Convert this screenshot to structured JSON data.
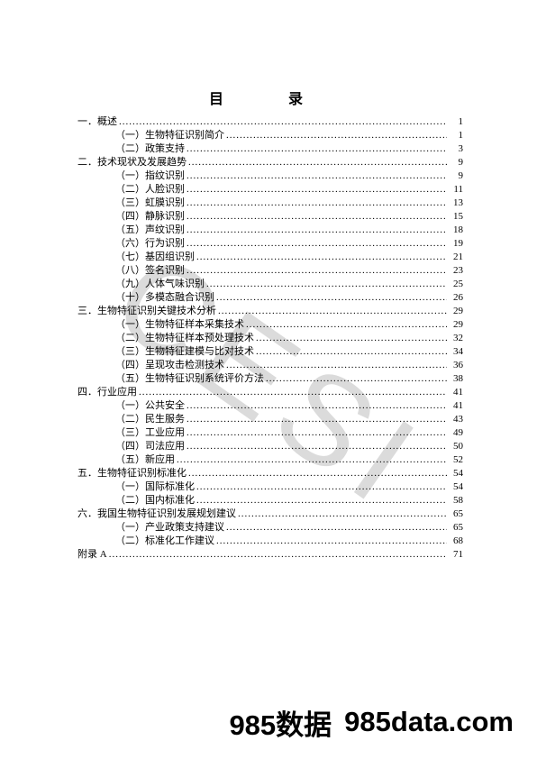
{
  "title": "目　录",
  "watermark": "CESI",
  "footer_left": "985数据",
  "footer_right": "985data.com",
  "toc": [
    {
      "level": 0,
      "num": "一．",
      "text": "概述",
      "page": "1"
    },
    {
      "level": 1,
      "num": "（一）",
      "text": "生物特征识别简介",
      "page": "1"
    },
    {
      "level": 1,
      "num": "（二）",
      "text": "政策支持",
      "page": "3"
    },
    {
      "level": 0,
      "num": "二．",
      "text": "技术现状及发展趋势",
      "page": "9"
    },
    {
      "level": 1,
      "num": "（一）",
      "text": "指纹识别",
      "page": "9"
    },
    {
      "level": 1,
      "num": "（二）",
      "text": "人脸识别",
      "page": "11"
    },
    {
      "level": 1,
      "num": "（三）",
      "text": "虹膜识别",
      "page": "13"
    },
    {
      "level": 1,
      "num": "（四）",
      "text": "静脉识别",
      "page": "15"
    },
    {
      "level": 1,
      "num": "（五）",
      "text": "声纹识别",
      "page": "18"
    },
    {
      "level": 1,
      "num": "（六）",
      "text": "行为识别",
      "page": "19"
    },
    {
      "level": 1,
      "num": "（七）",
      "text": "基因组识别",
      "page": "21"
    },
    {
      "level": 1,
      "num": "（八）",
      "text": "签名识别",
      "page": "23"
    },
    {
      "level": 1,
      "num": "（九）",
      "text": "人体气味识别",
      "page": "25"
    },
    {
      "level": 1,
      "num": "（十）",
      "text": "多模态融合识别",
      "page": "26"
    },
    {
      "level": 0,
      "num": "三．",
      "text": "生物特征识别关键技术分析",
      "page": "29"
    },
    {
      "level": 1,
      "num": "（一）",
      "text": "生物特征样本采集技术",
      "page": "29"
    },
    {
      "level": 1,
      "num": "（二）",
      "text": "生物特征样本预处理技术",
      "page": "32"
    },
    {
      "level": 1,
      "num": "（三）",
      "text": "生物特征建模与比对技术",
      "page": "34"
    },
    {
      "level": 1,
      "num": "（四）",
      "text": "呈现攻击检测技术",
      "page": "36"
    },
    {
      "level": 1,
      "num": "（五）",
      "text": "生物特征识别系统评价方法",
      "page": "38"
    },
    {
      "level": 0,
      "num": "四．",
      "text": "行业应用",
      "page": "41"
    },
    {
      "level": 1,
      "num": "（一）",
      "text": "公共安全",
      "page": "41"
    },
    {
      "level": 1,
      "num": "（二）",
      "text": "民生服务",
      "page": "43"
    },
    {
      "level": 1,
      "num": "（三）",
      "text": "工业应用",
      "page": "49"
    },
    {
      "level": 1,
      "num": "（四）",
      "text": "司法应用",
      "page": "50"
    },
    {
      "level": 1,
      "num": "（五）",
      "text": "新应用",
      "page": "52"
    },
    {
      "level": 0,
      "num": "五．",
      "text": "生物特征识别标准化",
      "page": "54"
    },
    {
      "level": 1,
      "num": "（一）",
      "text": "国际标准化",
      "page": "54"
    },
    {
      "level": 1,
      "num": "（二）",
      "text": "国内标准化",
      "page": "58"
    },
    {
      "level": 0,
      "num": "六．",
      "text": "我国生物特征识别发展规划建议",
      "page": "65"
    },
    {
      "level": 1,
      "num": "（一）",
      "text": "产业政策支持建议",
      "page": "65"
    },
    {
      "level": 1,
      "num": "（二）",
      "text": "标准化工作建议",
      "page": "68"
    },
    {
      "level": 0,
      "num": "附录 A",
      "text": "",
      "page": "71"
    }
  ]
}
